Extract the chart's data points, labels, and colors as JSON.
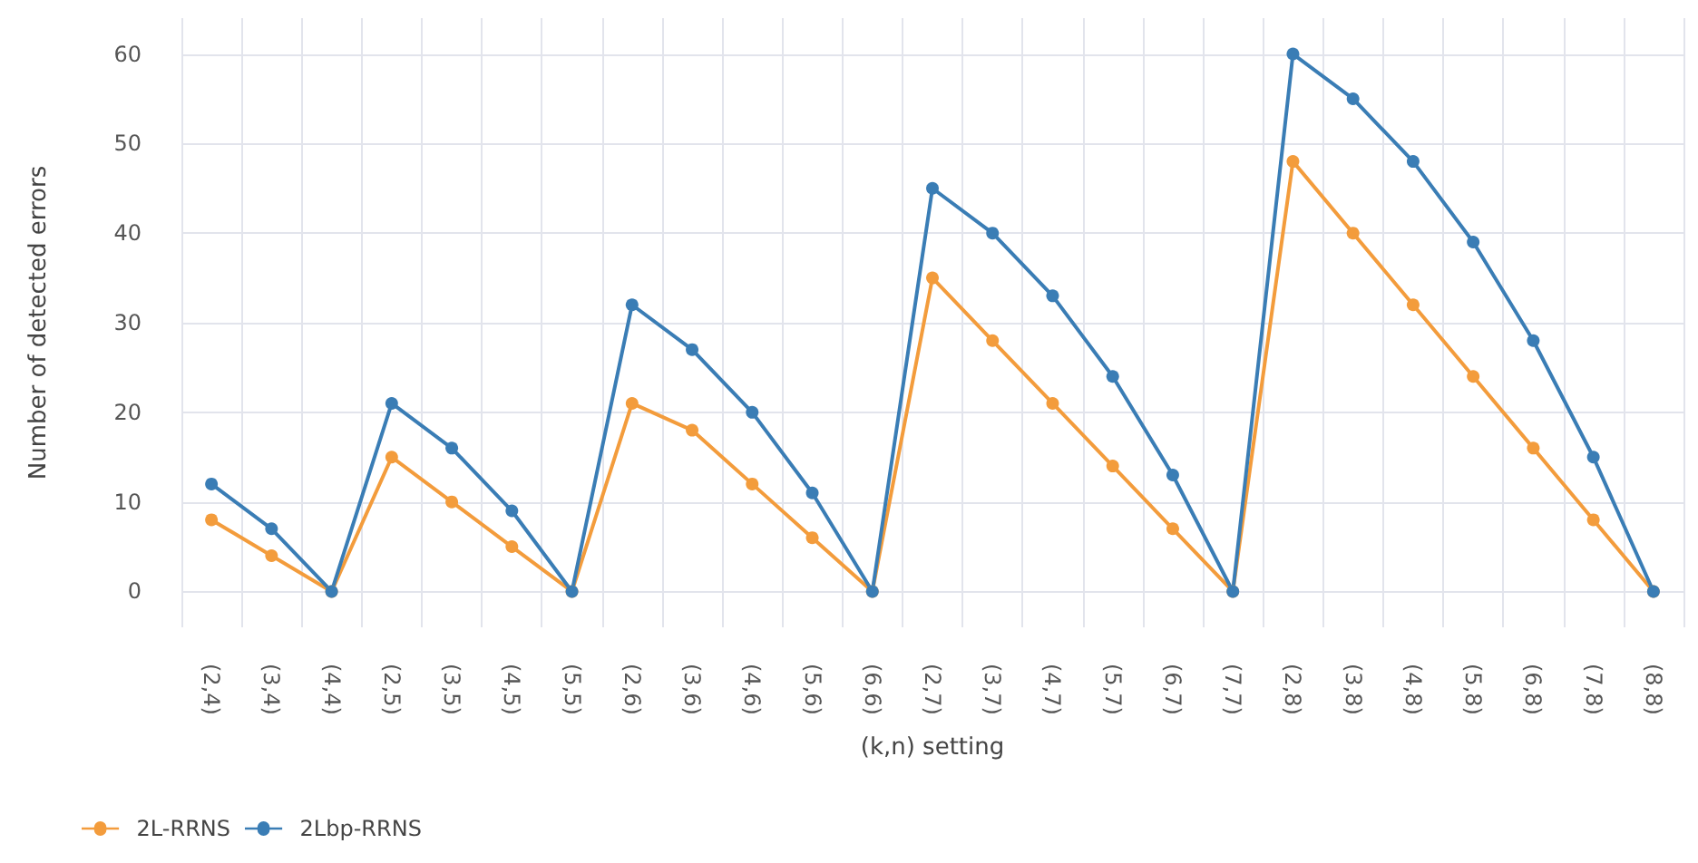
{
  "chart_data": {
    "type": "line",
    "xlabel": "(k,n) setting",
    "ylabel": "Number of detected errors",
    "categories": [
      "(2,4)",
      "(3,4)",
      "(4,4)",
      "(2,5)",
      "(3,5)",
      "(4,5)",
      "(5,5)",
      "(2,6)",
      "(3,6)",
      "(4,6)",
      "(5,6)",
      "(6,6)",
      "(2,7)",
      "(3,7)",
      "(4,7)",
      "(5,7)",
      "(6,7)",
      "(7,7)",
      "(2,8)",
      "(3,8)",
      "(4,8)",
      "(5,8)",
      "(6,8)",
      "(7,8)",
      "(8,8)"
    ],
    "series": [
      {
        "name": "2L-RRNS",
        "color": "#f39c3c",
        "values": [
          8,
          4,
          0,
          15,
          10,
          5,
          0,
          21,
          18,
          12,
          6,
          0,
          35,
          28,
          21,
          14,
          7,
          0,
          48,
          40,
          32,
          24,
          16,
          8,
          0
        ]
      },
      {
        "name": "2Lbp-RRNS",
        "color": "#3a7db5",
        "values": [
          12,
          7,
          0,
          21,
          16,
          9,
          0,
          32,
          27,
          20,
          11,
          0,
          45,
          40,
          33,
          24,
          13,
          0,
          60,
          55,
          48,
          39,
          28,
          15,
          0
        ]
      }
    ],
    "ylim": [
      -4,
      64
    ],
    "yticks": [
      0,
      10,
      20,
      30,
      40,
      50,
      60
    ],
    "grid": true,
    "legend": "bottom left",
    "marker": "circle",
    "line_style": "solid"
  }
}
